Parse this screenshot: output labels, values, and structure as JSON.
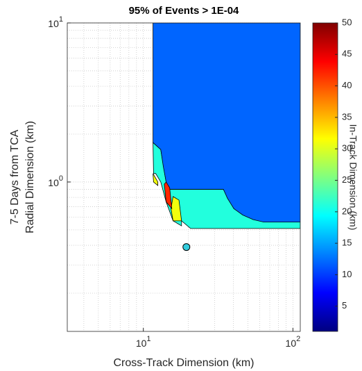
{
  "chart_data": {
    "type": "contour",
    "title": "95% of Events > 1E-04",
    "xlabel": "Cross-Track Dimension (km)",
    "ylabel": [
      "7-5 Days from TCA",
      "Radial Dimension (km)"
    ],
    "xscale": "log",
    "yscale": "log",
    "xlim": [
      3.1,
      112
    ],
    "ylim": [
      0.115,
      10
    ],
    "xticks": [
      {
        "value": 10,
        "label": "10",
        "exponent": "1"
      },
      {
        "value": 100,
        "label": "10",
        "exponent": "2"
      }
    ],
    "yticks": [
      {
        "value": 1,
        "label": "10",
        "exponent": "0"
      },
      {
        "value": 10,
        "label": "10",
        "exponent": "1"
      }
    ],
    "xminorticks": [
      4,
      5,
      6,
      7,
      8,
      9,
      20,
      30,
      40,
      50,
      60,
      70,
      80,
      90
    ],
    "yminorticks": [
      0.2,
      0.3,
      0.4,
      0.5,
      0.6,
      0.7,
      0.8,
      0.9,
      2,
      3,
      4,
      5,
      6,
      7,
      8,
      9
    ],
    "grid": true,
    "regions": [
      {
        "value": 21,
        "x": [
          11.6,
          13.07,
          14.2,
          15.0,
          34.3,
          40.3,
          54.3,
          112,
          112,
          20.7,
          18.0,
          18.0,
          15.8,
          14.2,
          13.07,
          12.1,
          11.7
        ],
        "y": [
          1.77,
          1.6,
          1,
          0.9,
          0.9,
          0.68,
          0.58,
          0.56,
          0.51,
          0.51,
          0.57,
          0.53,
          0.57,
          0.75,
          1,
          1.13,
          1.13
        ]
      },
      {
        "value": 12,
        "x": [
          11.6,
          112,
          112,
          63.8,
          54.3,
          46.2,
          40.3,
          36.5,
          34.3,
          15.0,
          14.2,
          13.6,
          13.07,
          11.6
        ],
        "y": [
          10,
          10,
          0.56,
          0.56,
          0.58,
          0.62,
          0.68,
          0.79,
          0.9,
          0.9,
          1,
          1.25,
          1.6,
          1.77
        ]
      },
      {
        "value": 31,
        "x": [
          15.8,
          17.3,
          18.0,
          15.8,
          15.3
        ],
        "y": [
          0.81,
          0.77,
          0.57,
          0.57,
          0.68
        ]
      },
      {
        "value": 42,
        "x": [
          14.2,
          15.0,
          15.5,
          14.2,
          13.8
        ],
        "y": [
          1,
          0.92,
          0.68,
          0.75,
          0.97
        ]
      },
      {
        "value": 31,
        "x": [
          11.6,
          12.5,
          12.5,
          11.7
        ],
        "y": [
          1.13,
          1.0,
          0.95,
          1.0
        ]
      }
    ],
    "marker": {
      "x": 19.4,
      "y": 0.39,
      "color": "#33ccdd"
    },
    "colorbar": {
      "label": "In-Track Dimension (km)",
      "colormap": "jet",
      "lim": [
        1,
        50
      ],
      "ticks": [
        5,
        10,
        15,
        20,
        25,
        30,
        35,
        40,
        45,
        50
      ]
    }
  }
}
